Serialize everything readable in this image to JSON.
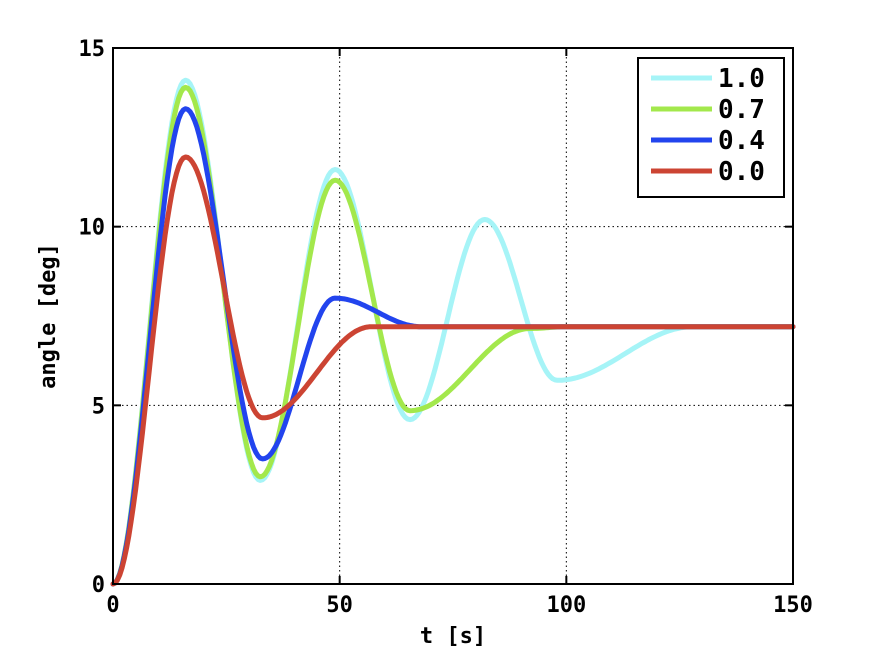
{
  "chart_data": {
    "type": "line",
    "title": "",
    "xlabel": "t [s]",
    "ylabel": "angle [deg]",
    "xlim": [
      0,
      150
    ],
    "ylim": [
      0,
      15
    ],
    "xticks": [
      0,
      50,
      100,
      150
    ],
    "yticks": [
      0,
      5,
      10,
      15
    ],
    "grid": true,
    "legend_position": "top-right",
    "series": [
      {
        "name": "1.0",
        "color": "#a6f4f7",
        "keypoints": [
          [
            0,
            0
          ],
          [
            16,
            14.1
          ],
          [
            32.5,
            2.9
          ],
          [
            49,
            11.6
          ],
          [
            65.5,
            4.6
          ],
          [
            82,
            10.2
          ],
          [
            98,
            5.7
          ],
          [
            128,
            7.2
          ],
          [
            150,
            7.2
          ]
        ]
      },
      {
        "name": "0.7",
        "color": "#a3e84c",
        "keypoints": [
          [
            0,
            0
          ],
          [
            16,
            13.9
          ],
          [
            32.5,
            3.0
          ],
          [
            49,
            11.3
          ],
          [
            65.5,
            4.85
          ],
          [
            92,
            7.15
          ],
          [
            100,
            7.2
          ],
          [
            150,
            7.2
          ]
        ]
      },
      {
        "name": "0.4",
        "color": "#2244ee",
        "keypoints": [
          [
            0,
            0
          ],
          [
            16,
            13.3
          ],
          [
            33,
            3.5
          ],
          [
            49,
            8.0
          ],
          [
            68,
            7.2
          ],
          [
            150,
            7.2
          ]
        ]
      },
      {
        "name": "0.0",
        "color": "#cc4433",
        "keypoints": [
          [
            0,
            0
          ],
          [
            16,
            11.95
          ],
          [
            33,
            4.65
          ],
          [
            57,
            7.2
          ],
          [
            150,
            7.2
          ]
        ]
      }
    ]
  }
}
